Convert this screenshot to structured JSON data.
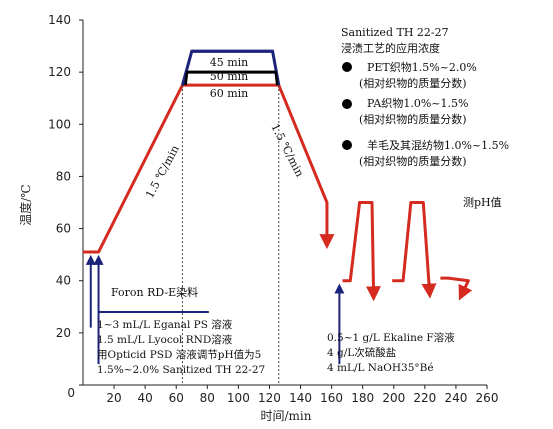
{
  "chart_data": {
    "type": "line",
    "xlabel": "时间/min",
    "ylabel": "温度/℃",
    "xlim": [
      0,
      260
    ],
    "ylim": [
      0,
      140
    ],
    "x_ticks": [
      "20",
      "40",
      "60",
      "80",
      "100",
      "120",
      "140",
      "160",
      "180",
      "200",
      "220",
      "240",
      "260"
    ],
    "y_ticks": [
      "0",
      "20",
      "40",
      "60",
      "80",
      "100",
      "120",
      "140"
    ],
    "grid": false,
    "series": [
      {
        "color": "#d42a1f",
        "x": [
          0,
          10,
          64,
          126,
          157,
          157
        ],
        "y": [
          51,
          51,
          115,
          115,
          70,
          55
        ]
      },
      {
        "color": "#000000",
        "x": [
          67,
          124
        ],
        "y": [
          120,
          120
        ]
      },
      {
        "color": "#1c237a",
        "x": [
          70,
          122
        ],
        "y": [
          128,
          128
        ]
      }
    ],
    "post_process": [
      [
        [
          167,
          40
        ],
        [
          172,
          40
        ],
        [
          178,
          70
        ],
        [
          186,
          70
        ],
        [
          187,
          35
        ]
      ],
      [
        [
          199,
          40
        ],
        [
          206,
          40
        ],
        [
          211,
          70
        ],
        [
          219,
          70
        ],
        [
          223,
          36
        ]
      ],
      [
        [
          230,
          41
        ],
        [
          235,
          41
        ],
        [
          248,
          40
        ],
        [
          244,
          35
        ]
      ]
    ],
    "hold_labels": [
      "45 min",
      "50 min",
      "60 min"
    ],
    "rate_labels": [
      "1.5 ℃/min",
      "1.5 ℃/min"
    ],
    "right_title": "测pH值",
    "legend_block": {
      "lines": [
        "Sanitized TH 22-27",
        "浸渍工艺的应用浓度",
        "PET织物1.5%~2.0%",
        "(相对织物的质量分数)",
        "PA织物1.0%~1.5%",
        "(相对织物的质量分数)",
        "羊毛及其混纺物1.0%~1.5%",
        "(相对织物的质量分数)"
      ],
      "bullet_color": "#000000"
    },
    "dye_label": "Foron RD-E染料",
    "bath_lines": [
      "1~3 mL/L Eganal PS 溶液",
      "1.5 mL/L Lyocol RND溶液",
      "用Opticid PSD 溶液调节pH值为5",
      "1.5%~2.0% Sanitized TH 22-27"
    ],
    "clear_lines": [
      "0.5~1 g/L Ekaline F溶液",
      "4 g/L次硫酸盐",
      "4 mL/L NaOH35°Bé"
    ]
  }
}
